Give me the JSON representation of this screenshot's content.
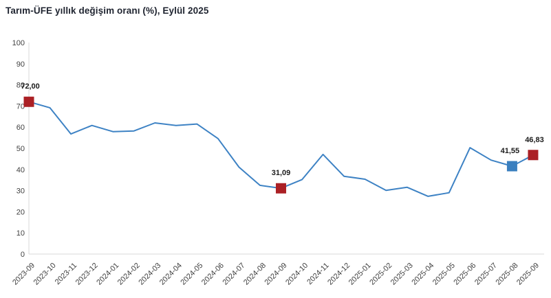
{
  "title": "Tarım-ÜFE yıllık değişim oranı (%), Eylül 2025",
  "chart_data": {
    "type": "line",
    "title": "Tarım-ÜFE yıllık değişim oranı (%), Eylül 2025",
    "xlabel": "",
    "ylabel": "",
    "ylim": [
      0,
      100
    ],
    "yticks": [
      0,
      10,
      20,
      30,
      40,
      50,
      60,
      70,
      80,
      90,
      100
    ],
    "grid": false,
    "legend": "none",
    "categories": [
      "2023-09",
      "2023-10",
      "2023-11",
      "2023-12",
      "2024-01",
      "2024-02",
      "2024-03",
      "2024-04",
      "2024-05",
      "2024-06",
      "2024-07",
      "2024-08",
      "2024-09",
      "2024-10",
      "2024-11",
      "2024-12",
      "2025-01",
      "2025-02",
      "2025-03",
      "2025-04",
      "2025-05",
      "2025-06",
      "2025-07",
      "2025-08",
      "2025-09"
    ],
    "series": [
      {
        "name": "Tarım-ÜFE yıllık değişim oranı (%)",
        "values": [
          72.0,
          69.2,
          56.8,
          60.8,
          57.9,
          58.2,
          62.0,
          60.8,
          61.5,
          54.6,
          41.1,
          32.5,
          31.09,
          35.2,
          47.1,
          36.8,
          35.4,
          30.1,
          31.6,
          27.3,
          29.0,
          50.3,
          44.4,
          41.55,
          46.83
        ]
      }
    ],
    "annotations": [
      {
        "category": "2023-09",
        "index": 0,
        "value": 72.0,
        "label": "72,00",
        "marker": "square",
        "marker_color": "#ab2025",
        "label_dx": 2
      },
      {
        "category": "2024-09",
        "index": 12,
        "value": 31.09,
        "label": "31,09",
        "marker": "square",
        "marker_color": "#ab2025",
        "label_dx": 0
      },
      {
        "category": "2025-08",
        "index": 23,
        "value": 41.55,
        "label": "41,55",
        "marker": "square",
        "marker_color": "#3a7fbf",
        "label_dx": -3
      },
      {
        "category": "2025-09",
        "index": 24,
        "value": 46.83,
        "label": "46,83",
        "marker": "square",
        "marker_color": "#ab2025",
        "label_dx": 2
      }
    ],
    "colors": {
      "line": "#3d82c4",
      "axis": "#d9d9d9",
      "tick_label": "#404040",
      "point_label": "#1a1a1a",
      "marker_red": "#ab2025",
      "marker_blue": "#3a7fbf",
      "background": "#ffffff"
    }
  }
}
